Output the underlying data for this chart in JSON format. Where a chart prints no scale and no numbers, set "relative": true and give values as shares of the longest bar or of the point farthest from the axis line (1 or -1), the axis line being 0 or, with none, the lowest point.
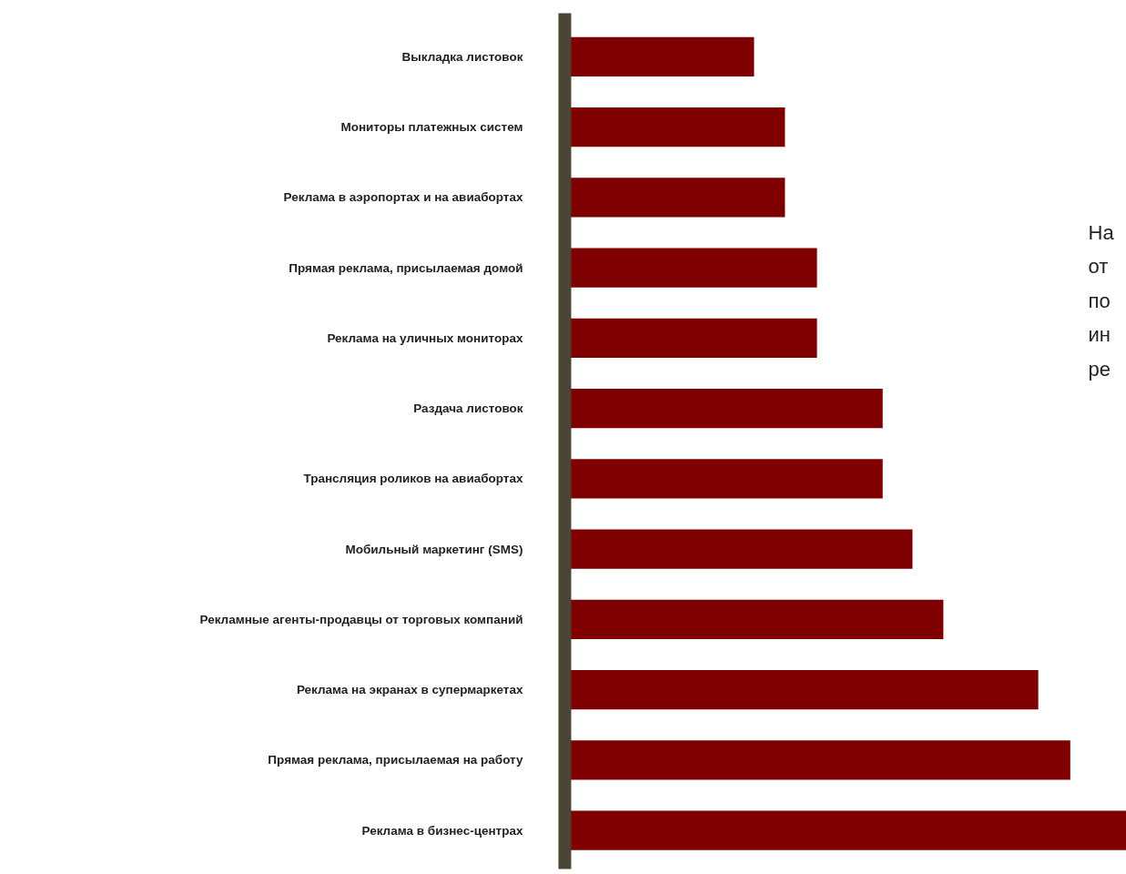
{
  "chart_data": {
    "type": "bar",
    "orientation": "horizontal",
    "relative": true,
    "color": "#7f0000",
    "categories": [
      "Выкладка листовок",
      "Мониторы платежных систем",
      "Реклама в аэропортах и на авиабортах",
      "Прямая реклама, присылаемая домой",
      "Реклама на уличных мониторах",
      "Раздача листовок",
      "Трансляция роликов на авиабортах",
      "Мобильный маркетинг (SMS)",
      "Рекламные агенты-продавцы от торговых компаний",
      "Реклама на экранах в супермаркетах",
      "Прямая реклама, присылаемая на работу",
      "Реклама в бизнес-центрах"
    ],
    "values": [
      0.337,
      0.392,
      0.392,
      0.449,
      0.449,
      0.566,
      0.566,
      0.619,
      0.674,
      0.843,
      0.9,
      1
    ],
    "annotations": [
      "На\nот\nпо\nин\nре"
    ]
  }
}
